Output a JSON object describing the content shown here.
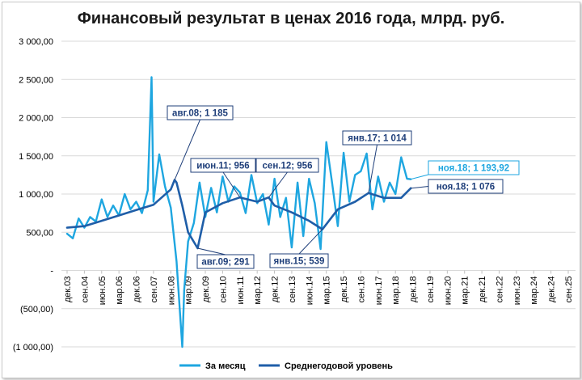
{
  "chart_data": {
    "type": "line",
    "title": "Финансовый результат в ценах 2016 года, млрд. руб.",
    "xlabel": "",
    "ylabel": "",
    "ylim": [
      -1000,
      3000
    ],
    "y_ticks": [
      {
        "v": 3000,
        "label": "3 000,00"
      },
      {
        "v": 2500,
        "label": "2 500,00"
      },
      {
        "v": 2000,
        "label": "2 000,00"
      },
      {
        "v": 1500,
        "label": "1 500,00"
      },
      {
        "v": 1000,
        "label": "1 000,00"
      },
      {
        "v": 500,
        "label": "500,00"
      },
      {
        "v": 0,
        "label": "-"
      },
      {
        "v": -500,
        "label": "(500,00)"
      },
      {
        "v": -1000,
        "label": "(1 000,00)"
      }
    ],
    "x_ticks": [
      "дек.03",
      "сен.04",
      "июн.05",
      "мар.06",
      "дек.06",
      "сен.07",
      "июн.08",
      "мар.09",
      "дек.09",
      "сен.10",
      "июн.11",
      "мар.12",
      "дек.12",
      "сен.13",
      "июн.14",
      "мар.15",
      "дек.15",
      "сен.16",
      "июн.17",
      "мар.18",
      "дек.18",
      "сен.19",
      "июн.20",
      "мар.21",
      "дек.21",
      "сен.22",
      "июн.23",
      "мар.24",
      "дек.24",
      "сен.25"
    ],
    "x_range": [
      "дек.03",
      "сен.25"
    ],
    "grid": true,
    "legend_position": "bottom",
    "series": [
      {
        "name": "За месяц",
        "color": "#1ea6e0",
        "x": [
          "дек.03",
          "мар.04",
          "июн.04",
          "сен.04",
          "дек.04",
          "мар.05",
          "июн.05",
          "сен.05",
          "дек.05",
          "мар.06",
          "июн.06",
          "сен.06",
          "дек.06",
          "мар.07",
          "июн.07",
          "авг.07",
          "сен.07",
          "дек.07",
          "мар.08",
          "июн.08",
          "сен.08",
          "дек.08",
          "янв.09",
          "мар.09",
          "июн.09",
          "сен.09",
          "дек.09",
          "мар.10",
          "июн.10",
          "сен.10",
          "дек.10",
          "мар.11",
          "июн.11",
          "сен.11",
          "дек.11",
          "мар.12",
          "июн.12",
          "сен.12",
          "дек.12",
          "мар.13",
          "июн.13",
          "сен.13",
          "дек.13",
          "мар.14",
          "июн.14",
          "сен.14",
          "дек.14",
          "мар.15",
          "июн.15",
          "сен.15",
          "дек.15",
          "мар.16",
          "июн.16",
          "сен.16",
          "дек.16",
          "мар.17",
          "июн.17",
          "сен.17",
          "дек.17",
          "мар.18",
          "июн.18",
          "сен.18",
          "ноя.18"
        ],
        "values": [
          480,
          420,
          680,
          560,
          700,
          640,
          930,
          700,
          850,
          720,
          1000,
          800,
          900,
          750,
          1050,
          2530,
          900,
          1520,
          1100,
          820,
          120,
          -1000,
          -250,
          380,
          620,
          1150,
          700,
          1080,
          760,
          1230,
          900,
          1100,
          1020,
          750,
          1250,
          880,
          1000,
          600,
          1200,
          700,
          950,
          300,
          1150,
          450,
          1200,
          880,
          280,
          1680,
          1150,
          580,
          1540,
          900,
          1250,
          1300,
          1530,
          800,
          1230,
          900,
          1150,
          1000,
          1480,
          1200,
          1194
        ]
      },
      {
        "name": "Среднегодовой уровень",
        "color": "#1f5ea8",
        "x": [
          "дек.03",
          "сен.04",
          "июн.05",
          "мар.06",
          "дек.06",
          "сен.07",
          "июн.08",
          "авг.08",
          "сен.08",
          "дек.08",
          "мар.09",
          "авг.09",
          "дек.09",
          "сен.10",
          "июн.11",
          "мар.12",
          "сен.12",
          "дек.12",
          "сен.13",
          "июн.14",
          "янв.15",
          "сен.15",
          "июн.16",
          "янв.17",
          "сен.17",
          "июн.18",
          "ноя.18"
        ],
        "values": [
          560,
          580,
          650,
          720,
          790,
          860,
          1060,
          1185,
          1150,
          850,
          500,
          291,
          760,
          880,
          956,
          900,
          956,
          850,
          760,
          650,
          539,
          800,
          900,
          1014,
          950,
          950,
          1076
        ]
      }
    ],
    "annotations": [
      {
        "text": "авг.08; 1 185",
        "color": "#1f3f7a"
      },
      {
        "text": "июн.11; 956",
        "color": "#1f3f7a"
      },
      {
        "text": "сен.12; 956",
        "color": "#1f3f7a"
      },
      {
        "text": "янв.17; 1 014",
        "color": "#1f3f7a"
      },
      {
        "text": "авг.09; 291",
        "color": "#1f3f7a"
      },
      {
        "text": "янв.15; 539",
        "color": "#1f3f7a"
      },
      {
        "text": "ноя.18;  1 193,92",
        "color": "#1ea6e0"
      },
      {
        "text": "ноя.18; 1 076",
        "color": "#1f3f7a"
      }
    ]
  }
}
